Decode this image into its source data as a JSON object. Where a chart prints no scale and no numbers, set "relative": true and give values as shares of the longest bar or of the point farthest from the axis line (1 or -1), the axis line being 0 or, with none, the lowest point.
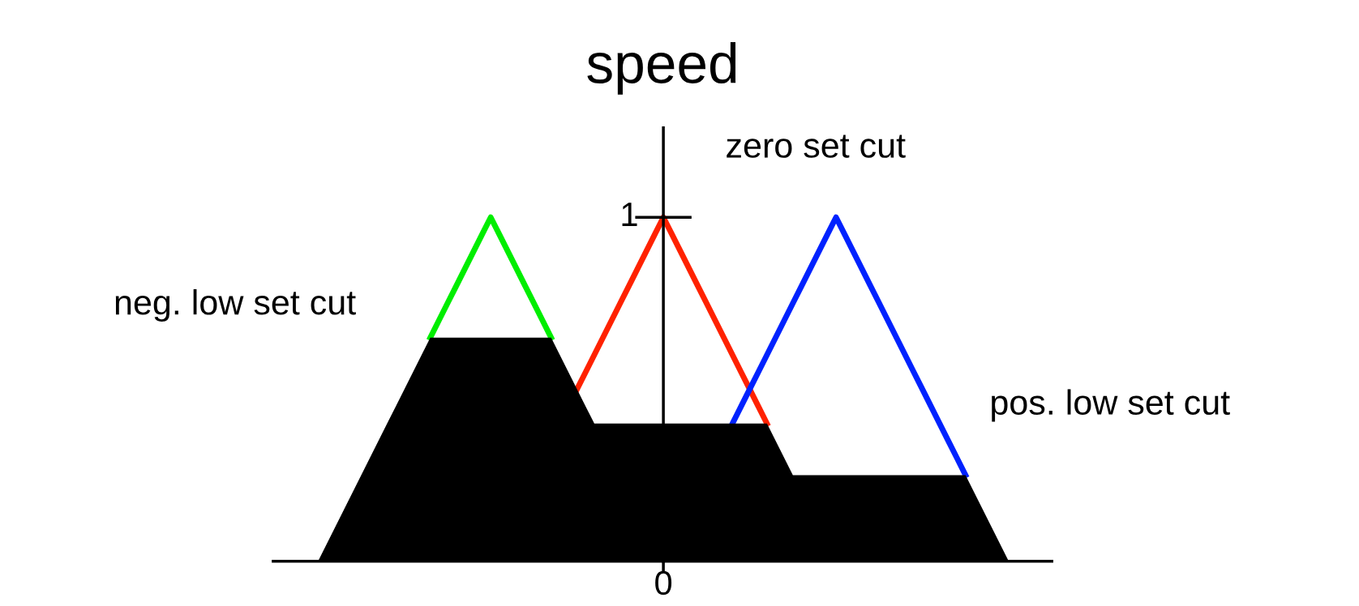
{
  "chart_data": {
    "type": "line",
    "title": "speed",
    "relative": true,
    "categories": [
      null,
      null,
      null,
      null,
      null,
      null,
      null,
      null,
      null,
      null,
      null,
      null,
      null,
      null,
      null,
      null,
      null,
      null,
      null,
      null,
      null,
      null,
      null,
      null,
      null,
      null,
      null,
      null,
      null,
      null,
      null,
      null,
      null,
      null,
      null,
      null,
      null,
      null,
      null,
      null,
      null,
      null,
      null,
      null,
      null,
      null,
      null,
      null,
      null,
      null,
      null,
      null,
      null,
      null,
      null,
      null,
      null,
      null,
      null,
      null,
      null,
      null,
      null,
      null,
      null,
      null,
      null,
      null,
      null,
      null,
      null,
      null,
      null,
      null,
      null,
      null,
      null,
      null,
      null,
      null,
      null
    ],
    "series": [
      {
        "type": "area",
        "color": "#000000",
        "values": [
          0,
          0.05,
          0.1,
          0.15,
          0.2,
          0.25,
          0.3,
          0.35,
          0.4,
          0.45,
          0.5,
          0.55,
          0.6,
          0.65,
          0.65,
          0.65,
          0.65,
          0.65,
          0.65,
          0.65,
          0.65,
          0.65,
          0.65,
          0.65,
          0.65,
          0.65,
          0.65,
          0.65,
          0.6,
          0.55,
          0.5,
          0.45,
          0.4,
          0.4,
          0.4,
          0.4,
          0.4,
          0.4,
          0.4,
          0.4,
          0.4,
          0.4,
          0.4,
          0.4,
          0.4,
          0.4,
          0.4,
          0.4,
          0.4,
          0.4,
          0.4,
          0.4,
          0.4,
          0.35,
          0.3,
          0.25,
          0.25,
          0.25,
          0.25,
          0.25,
          0.25,
          0.25,
          0.25,
          0.25,
          0.25,
          0.25,
          0.25,
          0.25,
          0.25,
          0.25,
          0.25,
          0.25,
          0.25,
          0.25,
          0.25,
          0.25,
          0.2,
          0.15,
          0.1,
          0.05,
          0
        ]
      },
      {
        "color": "#00ee00",
        "values": [
          null,
          null,
          null,
          null,
          null,
          null,
          null,
          null,
          null,
          null,
          null,
          null,
          null,
          0.65,
          0.7,
          0.75,
          0.8,
          0.85,
          0.9,
          0.95,
          1,
          0.95,
          0.9,
          0.85,
          0.8,
          0.75,
          0.7,
          0.65,
          null,
          null,
          null,
          null,
          null,
          null,
          null,
          null,
          null,
          null,
          null,
          null,
          null,
          null,
          null,
          null,
          null,
          null,
          null,
          null,
          null,
          null,
          null,
          null,
          null,
          null,
          null,
          null,
          null,
          null,
          null,
          null,
          null,
          null,
          null,
          null,
          null,
          null,
          null,
          null,
          null,
          null,
          null,
          null,
          null,
          null,
          null,
          null,
          null,
          null,
          null,
          null,
          null
        ]
      },
      {
        "color": "#ff2200",
        "values": [
          null,
          null,
          null,
          null,
          null,
          null,
          null,
          null,
          null,
          null,
          null,
          null,
          null,
          null,
          null,
          null,
          null,
          null,
          null,
          null,
          null,
          null,
          null,
          null,
          null,
          null,
          null,
          null,
          null,
          null,
          0.5,
          0.55,
          0.6,
          0.65,
          0.7,
          0.75,
          0.8,
          0.85,
          0.9,
          0.95,
          1,
          0.95,
          0.9,
          0.85,
          0.8,
          0.75,
          0.7,
          0.65,
          0.6,
          0.55,
          0.5,
          0.45,
          0.4,
          null,
          null,
          null,
          null,
          null,
          null,
          null,
          null,
          null,
          null,
          null,
          null,
          null,
          null,
          null,
          null,
          null,
          null,
          null,
          null,
          null,
          null,
          null,
          null,
          null,
          null,
          null,
          null
        ]
      },
      {
        "color": "#0022ff",
        "values": [
          null,
          null,
          null,
          null,
          null,
          null,
          null,
          null,
          null,
          null,
          null,
          null,
          null,
          null,
          null,
          null,
          null,
          null,
          null,
          null,
          null,
          null,
          null,
          null,
          null,
          null,
          null,
          null,
          null,
          null,
          null,
          null,
          null,
          null,
          null,
          null,
          null,
          null,
          null,
          null,
          null,
          null,
          null,
          null,
          null,
          null,
          null,
          null,
          0.4,
          0.45,
          0.5,
          0.55,
          0.6,
          0.65,
          0.7,
          0.75,
          0.8,
          0.85,
          0.9,
          0.95,
          1,
          0.95,
          0.9,
          0.85,
          0.8,
          0.75,
          0.7,
          0.65,
          0.6,
          0.55,
          0.5,
          0.45,
          0.4,
          0.35,
          0.3,
          0.25,
          null,
          null,
          null,
          null,
          null
        ]
      }
    ],
    "annotations": [
      "1",
      "0",
      "neg. low set cut",
      "zero set cut",
      "pos. low set cut"
    ]
  }
}
